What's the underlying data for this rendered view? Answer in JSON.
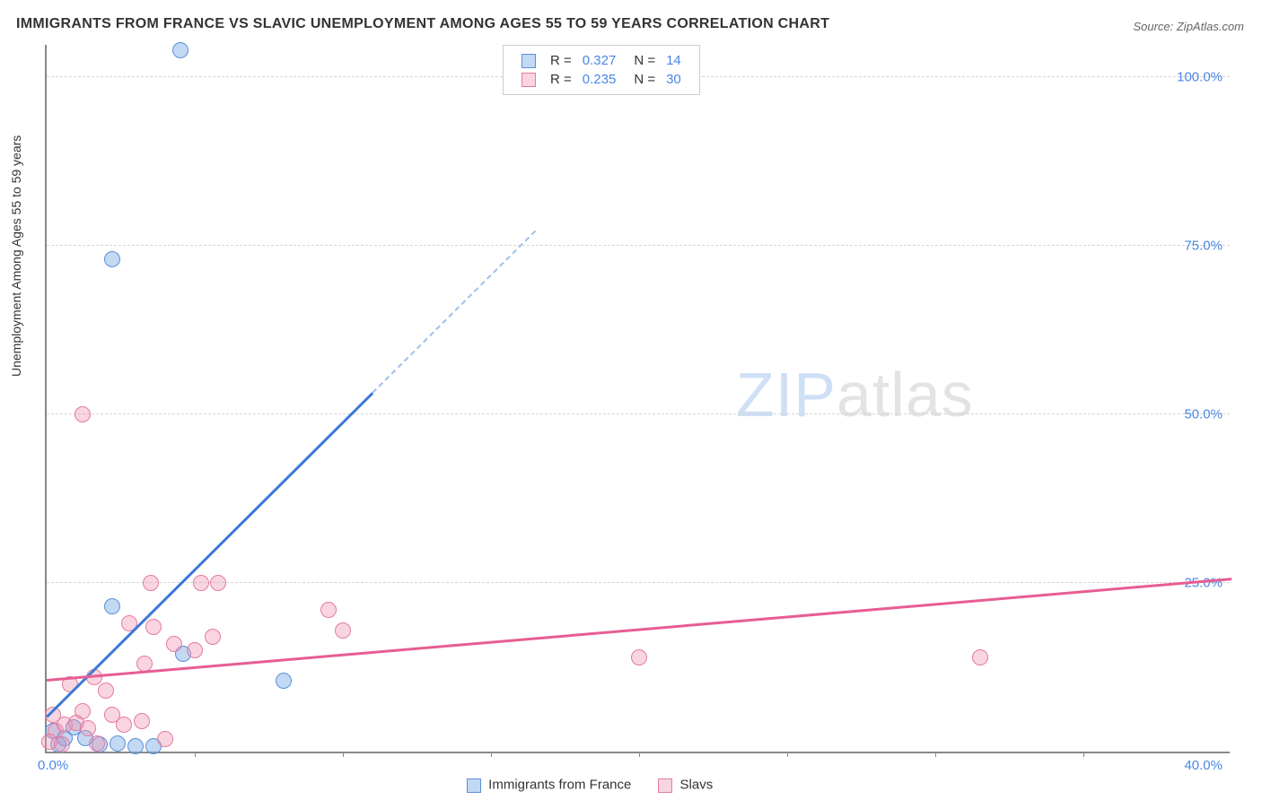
{
  "title": "IMMIGRANTS FROM FRANCE VS SLAVIC UNEMPLOYMENT AMONG AGES 55 TO 59 YEARS CORRELATION CHART",
  "source": "Source: ZipAtlas.com",
  "y_axis_label": "Unemployment Among Ages 55 to 59 years",
  "watermark_a": "ZIP",
  "watermark_b": "atlas",
  "chart": {
    "type": "scatter",
    "xlim": [
      0,
      40
    ],
    "ylim": [
      0,
      105
    ],
    "x_ticks_major": [
      0,
      40
    ],
    "x_ticks_minor": [
      5,
      10,
      15,
      20,
      25,
      30,
      35
    ],
    "x_tick_labels": {
      "0": "0.0%",
      "40": "40.0%"
    },
    "y_ticks": [
      25,
      50,
      75,
      100
    ],
    "y_tick_labels": {
      "25": "25.0%",
      "50": "50.0%",
      "75": "75.0%",
      "100": "100.0%"
    },
    "grid_dash": true,
    "background_color": "#ffffff",
    "grid_color": "#d5d5d5",
    "axis_color": "#888888",
    "tick_label_color": "#4a86e8",
    "series": [
      {
        "name": "Immigrants from France",
        "color_fill": "rgba(120,170,230,0.45)",
        "color_stroke": "#5b8fd6",
        "trend_color": "#3b78d8",
        "trend_dash_color": "#9ec0ec",
        "R": "0.327",
        "N": "14",
        "marker_radius": 9,
        "trend": {
          "x1": 0,
          "y1": 5,
          "x2": 11,
          "y2": 53,
          "dash_to_x": 16.5,
          "dash_to_y": 77
        },
        "points": [
          {
            "x": 4.5,
            "y": 104
          },
          {
            "x": 2.2,
            "y": 73
          },
          {
            "x": 2.2,
            "y": 21.5
          },
          {
            "x": 4.6,
            "y": 14.5
          },
          {
            "x": 8.0,
            "y": 10.5
          },
          {
            "x": 0.4,
            "y": 1.0
          },
          {
            "x": 0.6,
            "y": 2.0
          },
          {
            "x": 1.3,
            "y": 2.0
          },
          {
            "x": 1.8,
            "y": 1.0
          },
          {
            "x": 2.4,
            "y": 1.2
          },
          {
            "x": 3.0,
            "y": 0.8
          },
          {
            "x": 3.6,
            "y": 0.8
          },
          {
            "x": 0.2,
            "y": 3.0
          },
          {
            "x": 0.9,
            "y": 3.6
          }
        ]
      },
      {
        "name": "Slavs",
        "color_fill": "rgba(240,150,180,0.40)",
        "color_stroke": "#e47aa0",
        "trend_color": "#e75d93",
        "R": "0.235",
        "N": "30",
        "marker_radius": 9,
        "trend": {
          "x1": 0,
          "y1": 10.5,
          "x2": 40,
          "y2": 25.5
        },
        "points": [
          {
            "x": 1.2,
            "y": 50
          },
          {
            "x": 3.5,
            "y": 25
          },
          {
            "x": 5.2,
            "y": 25
          },
          {
            "x": 5.8,
            "y": 25
          },
          {
            "x": 9.5,
            "y": 21
          },
          {
            "x": 10.0,
            "y": 18
          },
          {
            "x": 20.0,
            "y": 14
          },
          {
            "x": 31.5,
            "y": 14
          },
          {
            "x": 2.8,
            "y": 19
          },
          {
            "x": 3.6,
            "y": 18.5
          },
          {
            "x": 3.3,
            "y": 13
          },
          {
            "x": 4.3,
            "y": 16
          },
          {
            "x": 5.0,
            "y": 15
          },
          {
            "x": 5.6,
            "y": 17
          },
          {
            "x": 0.8,
            "y": 10
          },
          {
            "x": 1.6,
            "y": 11
          },
          {
            "x": 2.0,
            "y": 9
          },
          {
            "x": 0.3,
            "y": 3
          },
          {
            "x": 0.6,
            "y": 4
          },
          {
            "x": 1.0,
            "y": 4.2
          },
          {
            "x": 1.4,
            "y": 3.5
          },
          {
            "x": 1.2,
            "y": 6
          },
          {
            "x": 2.2,
            "y": 5.5
          },
          {
            "x": 2.6,
            "y": 4
          },
          {
            "x": 3.2,
            "y": 4.5
          },
          {
            "x": 0.1,
            "y": 1.5
          },
          {
            "x": 0.5,
            "y": 1.0
          },
          {
            "x": 1.7,
            "y": 1.2
          },
          {
            "x": 4.0,
            "y": 1.8
          },
          {
            "x": 0.2,
            "y": 5.5
          }
        ]
      }
    ]
  },
  "legend_top": {
    "rows": [
      {
        "swatch_fill": "rgba(120,170,230,0.45)",
        "swatch_stroke": "#5b8fd6",
        "r_label": "R =",
        "r_val": "0.327",
        "n_label": "N =",
        "n_val": "14"
      },
      {
        "swatch_fill": "rgba(240,150,180,0.40)",
        "swatch_stroke": "#e47aa0",
        "r_label": "R =",
        "r_val": "0.235",
        "n_label": "N =",
        "n_val": "30"
      }
    ]
  },
  "legend_bottom": {
    "items": [
      {
        "swatch_fill": "rgba(120,170,230,0.45)",
        "swatch_stroke": "#5b8fd6",
        "label": "Immigrants from France"
      },
      {
        "swatch_fill": "rgba(240,150,180,0.40)",
        "swatch_stroke": "#e47aa0",
        "label": "Slavs"
      }
    ]
  }
}
